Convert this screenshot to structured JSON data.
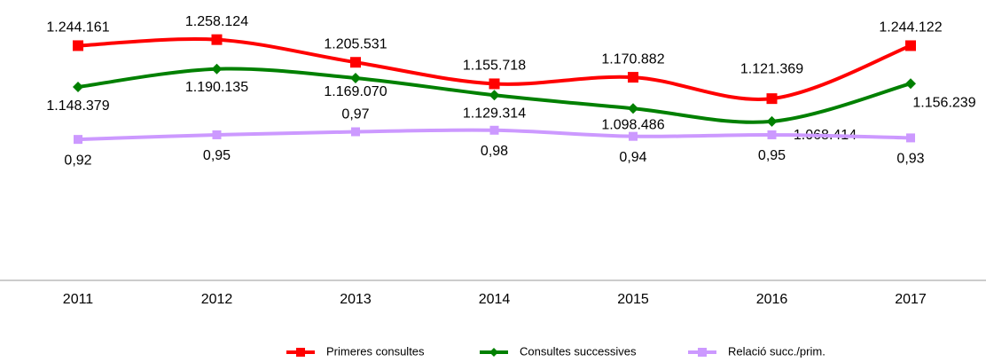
{
  "chart_data": {
    "type": "line",
    "categories": [
      "2011",
      "2012",
      "2013",
      "2014",
      "2015",
      "2016",
      "2017"
    ],
    "series": [
      {
        "name": "Primeres consultes",
        "color": "#ff0000",
        "values": [
          1244161,
          1258124,
          1205531,
          1155718,
          1170882,
          1121369,
          1244122
        ],
        "value_labels": [
          "1.244.161",
          "1.258.124",
          "1.205.531",
          "1.155.718",
          "1.170.882",
          "1.121.369",
          "1.244.122"
        ]
      },
      {
        "name": "Consultes successives",
        "color": "#008000",
        "values": [
          1148379,
          1190135,
          1169070,
          1129314,
          1098486,
          1068414,
          1156239
        ],
        "value_labels": [
          "1.148.379",
          "1.190.135",
          "1.169.070",
          "1.129.314",
          "1.098.486",
          "1.068.414",
          "1.156.239"
        ]
      },
      {
        "name": "Relació succ./prim.",
        "color": "#cc99ff",
        "axis": "y2",
        "values": [
          0.92,
          0.95,
          0.97,
          0.98,
          0.94,
          0.95,
          0.93
        ],
        "value_labels": [
          "0,92",
          "0,95",
          "0,97",
          "0,98",
          "0,94",
          "0,95",
          "0,93"
        ]
      }
    ],
    "ylim": [
      700000,
      1350000
    ],
    "y2lim": [
      0,
      1.83
    ],
    "legend": "bottom"
  }
}
